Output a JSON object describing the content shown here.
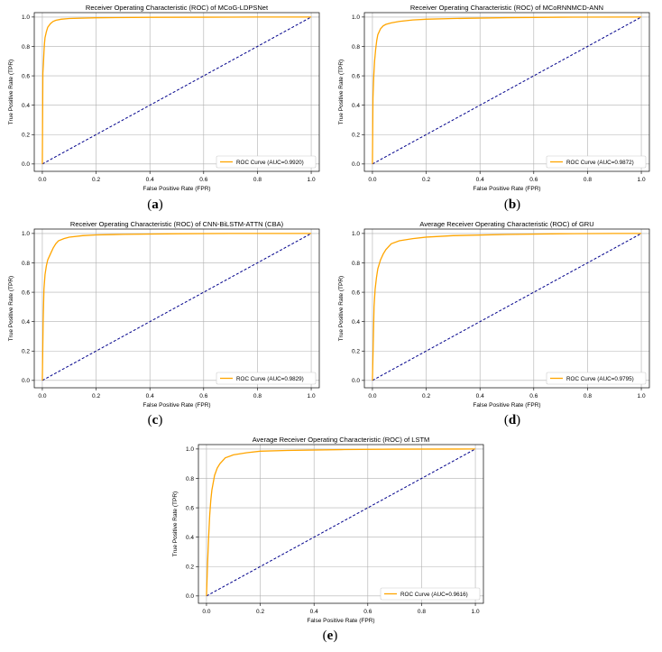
{
  "chart_data": [
    {
      "panel_label": "a",
      "type": "line",
      "title": "Receiver Operating Characteristic (ROC) of MCoG-LDPSNet",
      "xlabel": "False Positive Rate (FPR)",
      "ylabel": "True Positive Rate (TPR)",
      "xlim": [
        -0.03,
        1.03
      ],
      "ylim": [
        -0.05,
        1.03
      ],
      "ticks": [
        "0.0",
        "0.2",
        "0.4",
        "0.6",
        "0.8",
        "1.0"
      ],
      "grid": true,
      "legend_position": "lower right",
      "colors": {
        "roc": "#FFA500",
        "diagonal": "#00008B"
      },
      "series": [
        {
          "name": "ROC Curve (AUC=0.9920)",
          "x": [
            0,
            0.002,
            0.004,
            0.006,
            0.008,
            0.01,
            0.015,
            0.02,
            0.03,
            0.04,
            0.05,
            0.07,
            0.1,
            0.2,
            0.4,
            0.6,
            0.8,
            1.0
          ],
          "y": [
            0,
            0.62,
            0.68,
            0.76,
            0.82,
            0.86,
            0.9,
            0.93,
            0.955,
            0.97,
            0.978,
            0.985,
            0.99,
            0.995,
            0.998,
            0.999,
            1.0,
            1.0
          ]
        }
      ]
    },
    {
      "panel_label": "b",
      "type": "line",
      "title": "Receiver Operating Characteristic (ROC) of MCoRNNMCD-ANN",
      "xlabel": "False Positive Rate (FPR)",
      "ylabel": "True Positive Rate (TPR)",
      "xlim": [
        -0.03,
        1.03
      ],
      "ylim": [
        -0.05,
        1.03
      ],
      "ticks": [
        "0.0",
        "0.2",
        "0.4",
        "0.6",
        "0.8",
        "1.0"
      ],
      "grid": true,
      "legend_position": "lower right",
      "colors": {
        "roc": "#FFA500",
        "diagonal": "#00008B"
      },
      "series": [
        {
          "name": "ROC Curve (AUC=0.9872)",
          "x": [
            0,
            0.002,
            0.005,
            0.008,
            0.012,
            0.016,
            0.02,
            0.03,
            0.04,
            0.05,
            0.07,
            0.1,
            0.15,
            0.2,
            0.3,
            0.5,
            0.7,
            1.0
          ],
          "y": [
            0,
            0.45,
            0.6,
            0.7,
            0.78,
            0.84,
            0.88,
            0.92,
            0.94,
            0.95,
            0.96,
            0.97,
            0.98,
            0.985,
            0.99,
            0.996,
            0.999,
            1.0
          ]
        }
      ]
    },
    {
      "panel_label": "c",
      "type": "line",
      "title": "Receiver Operating Characteristic (ROC) of CNN-BiLSTM-ATTN (CBA)",
      "xlabel": "False Positive Rate (FPR)",
      "ylabel": "True Positive Rate (TPR)",
      "xlim": [
        -0.03,
        1.03
      ],
      "ylim": [
        -0.05,
        1.03
      ],
      "ticks": [
        "0.0",
        "0.2",
        "0.4",
        "0.6",
        "0.8",
        "1.0"
      ],
      "grid": true,
      "legend_position": "lower right",
      "colors": {
        "roc": "#FFA500",
        "diagonal": "#00008B"
      },
      "series": [
        {
          "name": "ROC Curve (AUC=0.9829)",
          "x": [
            0,
            0.003,
            0.006,
            0.01,
            0.015,
            0.02,
            0.03,
            0.04,
            0.05,
            0.06,
            0.08,
            0.1,
            0.15,
            0.2,
            0.3,
            0.5,
            0.7,
            1.0
          ],
          "y": [
            0,
            0.4,
            0.62,
            0.72,
            0.78,
            0.82,
            0.86,
            0.9,
            0.93,
            0.95,
            0.965,
            0.975,
            0.985,
            0.99,
            0.994,
            0.998,
            1.0,
            1.0
          ]
        }
      ]
    },
    {
      "panel_label": "d",
      "type": "line",
      "title": "Average Receiver Operating Characteristic (ROC) of GRU",
      "xlabel": "False Positive Rate (FPR)",
      "ylabel": "True Positive Rate (TPR)",
      "xlim": [
        -0.03,
        1.03
      ],
      "ylim": [
        -0.05,
        1.03
      ],
      "ticks": [
        "0.0",
        "0.2",
        "0.4",
        "0.6",
        "0.8",
        "1.0"
      ],
      "grid": true,
      "legend_position": "lower right",
      "colors": {
        "roc": "#FFA500",
        "diagonal": "#00008B"
      },
      "series": [
        {
          "name": "ROC Curve (AUC=0.9795)",
          "x": [
            0,
            0.003,
            0.006,
            0.01,
            0.015,
            0.02,
            0.03,
            0.04,
            0.05,
            0.07,
            0.1,
            0.15,
            0.2,
            0.3,
            0.5,
            0.7,
            0.9,
            1.0
          ],
          "y": [
            0,
            0.25,
            0.5,
            0.62,
            0.7,
            0.76,
            0.82,
            0.86,
            0.89,
            0.93,
            0.95,
            0.965,
            0.975,
            0.985,
            0.993,
            0.998,
            1.0,
            1.0
          ]
        }
      ]
    },
    {
      "panel_label": "e",
      "type": "line",
      "title": "Average Receiver Operating Characteristic (ROC) of LSTM",
      "xlabel": "False Positive Rate (FPR)",
      "ylabel": "True Positive Rate (TPR)",
      "xlim": [
        -0.03,
        1.03
      ],
      "ylim": [
        -0.05,
        1.03
      ],
      "ticks": [
        "0.0",
        "0.2",
        "0.4",
        "0.6",
        "0.8",
        "1.0"
      ],
      "grid": true,
      "legend_position": "lower right",
      "colors": {
        "roc": "#FFA500",
        "diagonal": "#00008B"
      },
      "series": [
        {
          "name": "ROC Curve (AUC=0.9616)",
          "x": [
            0,
            0.004,
            0.008,
            0.012,
            0.016,
            0.02,
            0.025,
            0.03,
            0.04,
            0.05,
            0.07,
            0.1,
            0.15,
            0.2,
            0.3,
            0.5,
            0.7,
            1.0
          ],
          "y": [
            0,
            0.22,
            0.4,
            0.55,
            0.65,
            0.72,
            0.77,
            0.82,
            0.87,
            0.9,
            0.94,
            0.96,
            0.975,
            0.985,
            0.99,
            0.996,
            0.999,
            1.0
          ]
        }
      ]
    }
  ]
}
